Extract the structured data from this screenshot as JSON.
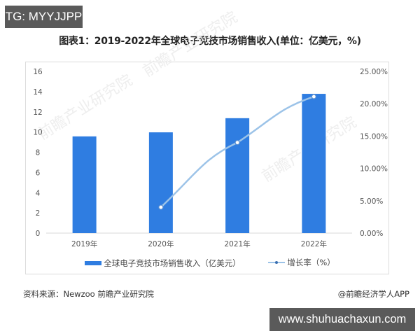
{
  "badges": {
    "top_left": "TG: MYYJJPP",
    "bottom_right": "www.shuhuachaxun.com"
  },
  "title": "图表1：2019-2022年全球电子竞技市场销售收入(单位：亿美元，%)",
  "watermark": "前瞻产业研究院",
  "legend": {
    "bar_label": "全球电子竞技市场销售收入（亿美元）",
    "line_label": "增长率（%）"
  },
  "footer": {
    "source": "资料来源：Newzoo 前瞻产业研究院",
    "credit": "@前瞻经济学人APP"
  },
  "colors": {
    "bar": "#2f7de1",
    "line": "#9cc3e8",
    "marker_stroke": "#5b8fd0",
    "axis": "#d9d9d9",
    "tick_text": "#555555"
  },
  "chart_data": {
    "type": "bar",
    "title": "图表1：2019-2022年全球电子竞技市场销售收入(单位：亿美元，%)",
    "categories": [
      "2019年",
      "2020年",
      "2021年",
      "2022年"
    ],
    "series": [
      {
        "name": "全球电子竞技市场销售收入（亿美元）",
        "type": "bar",
        "axis": "left",
        "values": [
          9.57,
          9.97,
          11.37,
          13.78
        ]
      },
      {
        "name": "增长率（%）",
        "type": "line",
        "axis": "right",
        "values": [
          null,
          4.0,
          14.0,
          21.1
        ]
      }
    ],
    "xlabel": "",
    "ylabel": "",
    "ylim": [
      0,
      16
    ],
    "yticks": [
      "0",
      "2",
      "4",
      "6",
      "8",
      "10",
      "12",
      "14",
      "16"
    ],
    "y2lim": [
      0,
      25
    ],
    "y2ticks": [
      "0.00%",
      "5.00%",
      "10.00%",
      "15.00%",
      "20.00%",
      "25.00%"
    ],
    "grid": false,
    "legend_position": "bottom"
  }
}
